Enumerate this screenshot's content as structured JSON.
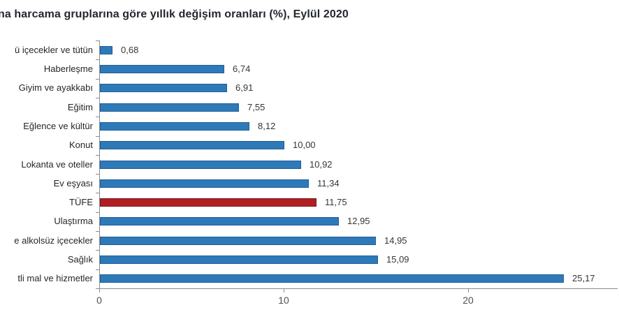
{
  "chart_data": {
    "type": "bar",
    "orientation": "horizontal",
    "title": "na harcama gruplarına göre yıllık değişim oranları (%), Eylül 2020",
    "categories": [
      "ü içecekler ve tütün",
      "Haberleşme",
      "Giyim ve ayakkabı",
      "Eğitim",
      "Eğlence ve kültür",
      "Konut",
      "Lokanta ve oteller",
      "Ev eşyası",
      "TÜFE",
      "Ulaştırma",
      "e alkolsüz içecekler",
      "Sağlık",
      "tli mal ve hizmetler"
    ],
    "values": [
      0.68,
      6.74,
      6.91,
      7.55,
      8.12,
      10.0,
      10.92,
      11.34,
      11.75,
      12.95,
      14.95,
      15.09,
      25.17
    ],
    "value_labels": [
      "0,68",
      "6,74",
      "6,91",
      "7,55",
      "8,12",
      "10,00",
      "10,92",
      "11,34",
      "11,75",
      "12,95",
      "14,95",
      "15,09",
      "25,17"
    ],
    "highlight_category": "TÜFE",
    "highlight_index": 8,
    "colors": {
      "bar_fill": "#2e7ab9",
      "bar_border": "#1f5c99",
      "highlight_fill": "#b01e23",
      "highlight_border": "#7d1418",
      "axis": "#8c8c8c",
      "title_text": "#23272e",
      "label_text": "#262626",
      "value_text": "#363636",
      "tick_text": "#4f4f4f"
    },
    "xlabel": "",
    "ylabel": "",
    "xticks": [
      0,
      10,
      20
    ],
    "xtick_labels": [
      "0",
      "10",
      "20"
    ],
    "xlim": [
      0,
      28.1
    ],
    "grid": false,
    "legend": "none",
    "value_unit": "%"
  }
}
